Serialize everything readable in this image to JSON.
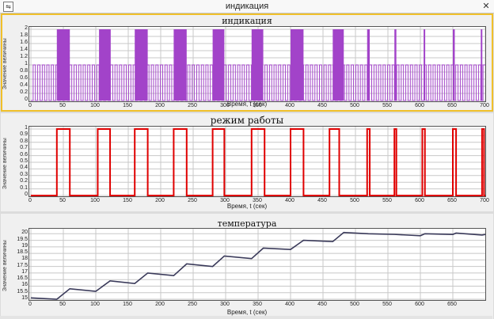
{
  "window": {
    "title": "индикация",
    "icon": "app-icon",
    "close_glyph": "✕"
  },
  "colors": {
    "indication": "#a243c9",
    "mode": "#e00000",
    "temperature": "#3a3a5a",
    "grid": "#c8c8c8",
    "active_border": "#f0c02a"
  },
  "chart_data": [
    {
      "type": "line",
      "title": "индикация",
      "xlabel": "Время, t (сек)",
      "ylabel": "Значение величины",
      "xlim": [
        0,
        700
      ],
      "ylim": [
        0,
        2
      ],
      "x_ticks": [
        0,
        50,
        100,
        150,
        200,
        250,
        300,
        350,
        400,
        450,
        500,
        550,
        600,
        650,
        700
      ],
      "y_ticks": [
        "0",
        "0.2",
        "0.4",
        "0.6",
        "0.8",
        "1",
        "1.2",
        "1.4",
        "1.6",
        "1.8",
        "2"
      ],
      "grid": true,
      "series": [
        {
          "square_wave_between": [
            0,
            1
          ],
          "period_sec": 7,
          "dense_0_2_blocks_sec": [
            [
              40,
              60
            ],
            [
              105,
              123
            ],
            [
              160,
              180
            ],
            [
              220,
              240
            ],
            [
              280,
              298
            ],
            [
              340,
              358
            ],
            [
              400,
              420
            ],
            [
              465,
              482
            ],
            [
              518,
              522
            ],
            [
              560,
              563
            ],
            [
              605,
              607
            ],
            [
              650,
              653
            ],
            [
              693,
              695
            ]
          ]
        }
      ]
    },
    {
      "type": "line",
      "title": "режим работы",
      "xlabel": "Время, t (сек)",
      "ylabel": "Значение величины",
      "xlim": [
        0,
        700
      ],
      "ylim": [
        0,
        1
      ],
      "x_ticks": [
        0,
        50,
        100,
        150,
        200,
        250,
        300,
        350,
        400,
        450,
        500,
        550,
        600,
        650,
        700
      ],
      "y_ticks": [
        "0",
        "0.1",
        "0.2",
        "0.3",
        "0.4",
        "0.5",
        "0.6",
        "0.7",
        "0.8",
        "0.9",
        "1"
      ],
      "grid": true,
      "series": [
        {
          "on_intervals_sec": [
            [
              40,
              60
            ],
            [
              103,
              122
            ],
            [
              160,
              180
            ],
            [
              220,
              240
            ],
            [
              280,
              298
            ],
            [
              340,
              360
            ],
            [
              400,
              420
            ],
            [
              460,
              475
            ],
            [
              518,
              522
            ],
            [
              560,
              563
            ],
            [
              603,
              607
            ],
            [
              650,
              655
            ],
            [
              695,
              698
            ]
          ]
        }
      ]
    },
    {
      "type": "line",
      "title": "температура",
      "xlabel": "Время, t (сек)",
      "ylabel": "Значение величины",
      "xlim": [
        0,
        700
      ],
      "ylim": [
        15,
        20.2
      ],
      "x_ticks": [
        0,
        50,
        100,
        150,
        200,
        250,
        300,
        350,
        400,
        450,
        500,
        550,
        600,
        650
      ],
      "y_ticks": [
        "15",
        "15.5",
        "16",
        "16.5",
        "17",
        "17.5",
        "18",
        "18.5",
        "19",
        "19.5",
        "20"
      ],
      "grid": true,
      "series": [
        {
          "x": [
            0,
            40,
            60,
            100,
            122,
            160,
            180,
            220,
            240,
            280,
            298,
            340,
            358,
            400,
            420,
            465,
            482,
            520,
            560,
            600,
            607,
            650,
            655,
            695,
            700
          ],
          "y": [
            15.1,
            15.0,
            15.8,
            15.6,
            16.4,
            16.2,
            17.0,
            16.8,
            17.7,
            17.5,
            18.3,
            18.1,
            18.9,
            18.8,
            19.5,
            19.4,
            20.1,
            20.0,
            19.95,
            19.85,
            20.0,
            19.95,
            20.05,
            19.9,
            19.95
          ]
        }
      ]
    }
  ]
}
